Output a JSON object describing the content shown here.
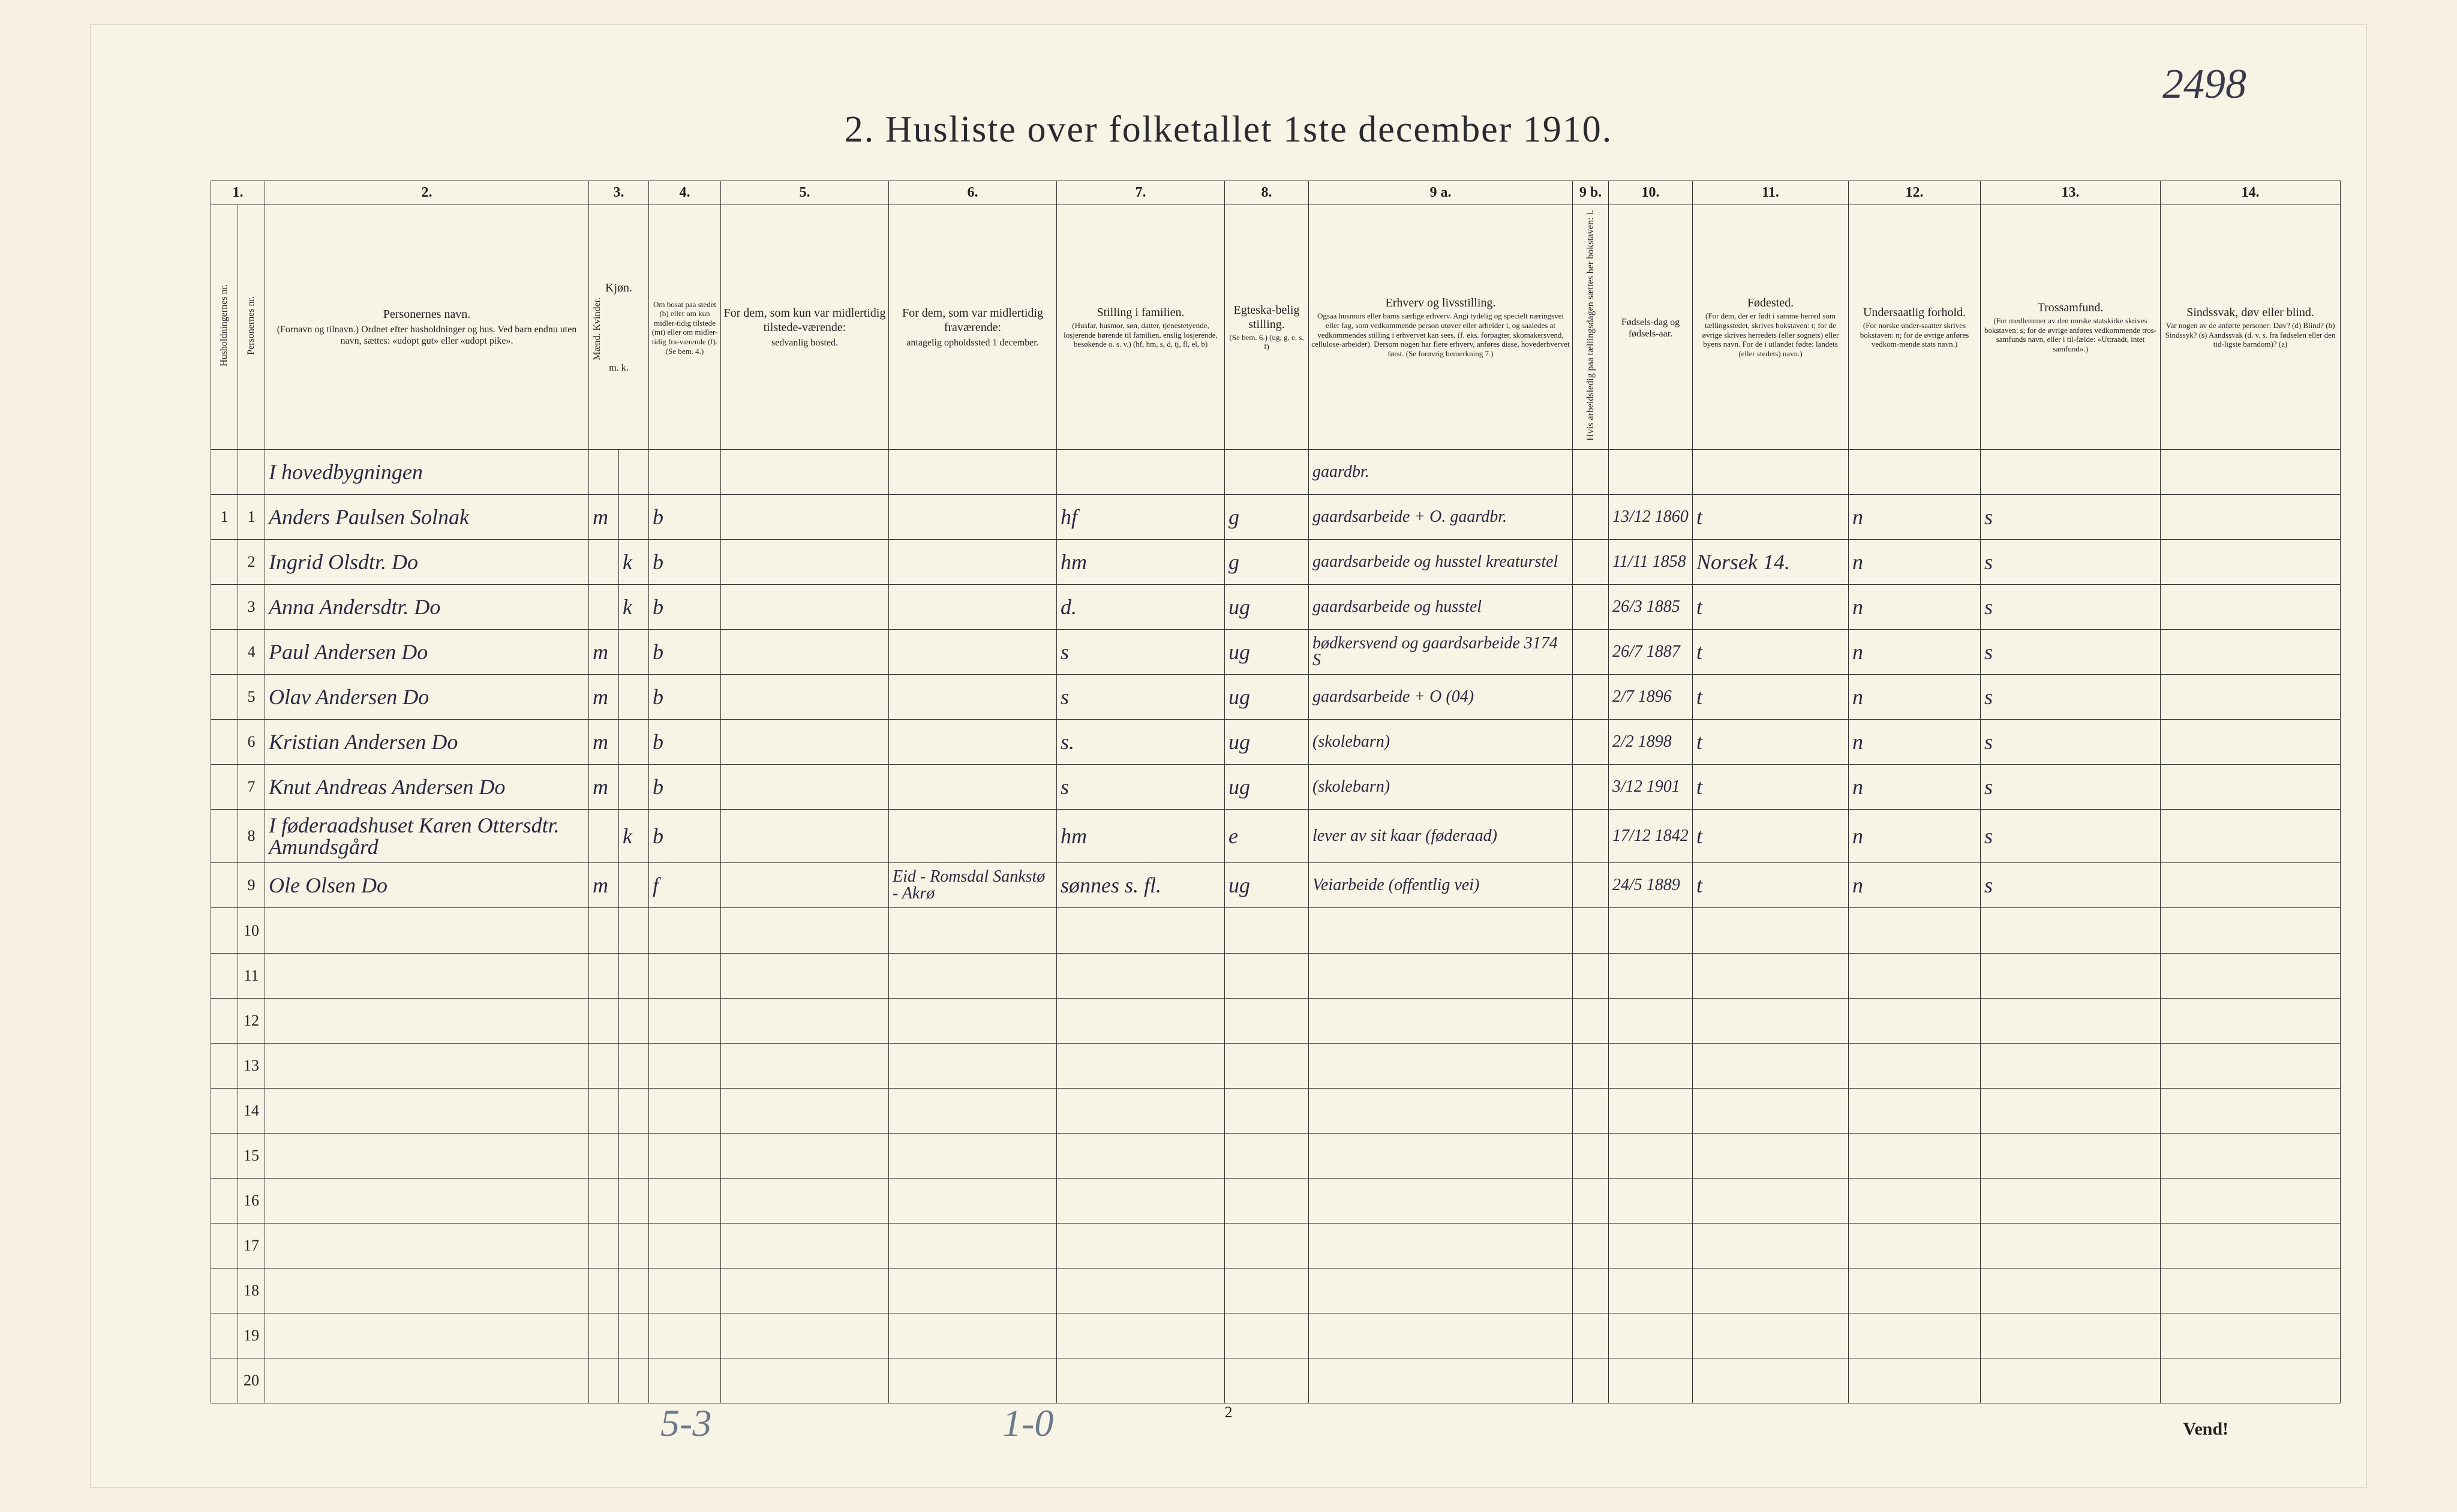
{
  "handwritten_topright": "2498",
  "title": "2.  Husliste over folketallet 1ste december 1910.",
  "footer_left": "5-3",
  "footer_mid": "1-0",
  "footer_pagenum": "2",
  "footer_vend": "Vend!",
  "colors": {
    "page_bg": "#f5f0e0",
    "ink": "#2a2a30",
    "pencil": "#6a7a88",
    "rule": "#333333"
  },
  "columns": {
    "nums": [
      "1.",
      "2.",
      "3.",
      "4.",
      "5.",
      "6.",
      "7.",
      "8.",
      "9 a.",
      "9 b.",
      "10.",
      "11.",
      "12.",
      "13.",
      "14."
    ],
    "h1": "Husholdningernes nr.",
    "h1b": "Personernes nr.",
    "h2": "Personernes navn.",
    "h2_sub": "(Fornavn og tilnavn.)\nOrdnet efter husholdninger og hus.\nVed barn endnu uten navn, sættes: «udopt gut» eller «udopt pike».",
    "h3": "Kjøn.",
    "h3_sub": "Mænd.  Kvinder.",
    "h3_foot": "m.  k.",
    "h4": "Om bosat paa stedet (b) eller om kun midler-tidig tilstede (mt) eller om midler-tidig fra-værende (f). (Se bem. 4.)",
    "h5": "For dem, som kun var midlertidig tilstede-værende:",
    "h5_sub": "sedvanlig bosted.",
    "h6": "For dem, som var midlertidig fraværende:",
    "h6_sub": "antagelig opholdssted 1 december.",
    "h7": "Stilling i familien.",
    "h7_sub": "(Husfar, husmor, søn, datter, tjenestetyende, losjerende hørende til familien, enslig losjerende, besøkende o. s. v.)\n(hf, hm, s, d, tj, fl, el, b)",
    "h8": "Egteska-belig stilling.",
    "h8_sub": "(Se bem. 6.)\n(ug, g, e, s, f)",
    "h9a": "Erhverv og livsstilling.",
    "h9a_sub": "Ogsaa husmors eller barns særlige erhverv. Angi tydelig og specielt næringsvei eller fag, som vedkommende person utøver eller arbeider i, og saaledes at vedkommendes stilling i erhvervet kan sees, (f. eks. forpagter, skomakersvend, cellulose-arbeider). Dersom nogen har flere erhverv, anføres disse, hovederhvervet først. (Se forøvrig bemerkning 7.)",
    "h9b": "Hvis arbeidsledig paa tællingsdagen sættes her bokstaven: l.",
    "h10": "Fødsels-dag og fødsels-aar.",
    "h11": "Fødested.",
    "h11_sub": "(For dem, der er født i samme herred som tællingsstedet, skrives bokstaven: t; for de øvrige skrives herredets (eller sognets) eller byens navn. For de i utlandet fødte: landets (eller stedets) navn.)",
    "h12": "Undersaatlig forhold.",
    "h12_sub": "(For norske under-saatter skrives bokstaven: n; for de øvrige anføres vedkom-mende stats navn.)",
    "h13": "Trossamfund.",
    "h13_sub": "(For medlemmer av den norske statskirke skrives bokstaven: s; for de øvrige anføres vedkommende tros-samfunds navn, eller i til-fælde: «Uttraadt, intet samfund».)",
    "h14": "Sindssvak, døv eller blind.",
    "h14_sub": "Var nogen av de anførte personer:\nDøv? (d)\nBlind? (b)\nSindssyk? (s)\nAandssvak (d. v. s. fra fødselen eller den tid-ligste barndom)? (a)"
  },
  "section_header": "I hovedbygningen",
  "rows": [
    {
      "hh": "1",
      "pn": "1",
      "name": "Anders Paulsen Solnak",
      "sex": "m",
      "res": "b",
      "c5": "",
      "c6": "",
      "fam": "hf",
      "mar": "g",
      "occ": "gaardsarbeide  + O.  gaardbr.",
      "dob": "13/12 1860",
      "birthpl": "t",
      "nat": "n",
      "rel": "s",
      "c14": ""
    },
    {
      "hh": "",
      "pn": "2",
      "name": "Ingrid Olsdtr.       Do",
      "sex": "k",
      "res": "b",
      "c5": "",
      "c6": "",
      "fam": "hm",
      "mar": "g",
      "occ": "gaardsarbeide og husstel  kreaturstel",
      "dob": "11/11 1858",
      "birthpl": "Norsek 14.",
      "nat": "n",
      "rel": "s",
      "c14": ""
    },
    {
      "hh": "",
      "pn": "3",
      "name": "Anna Andersdtr.  Do",
      "sex": "k",
      "res": "b",
      "c5": "",
      "c6": "",
      "fam": "d.",
      "mar": "ug",
      "occ": "gaardsarbeide og husstel",
      "dob": "26/3 1885",
      "birthpl": "t",
      "nat": "n",
      "rel": "s",
      "c14": ""
    },
    {
      "hh": "",
      "pn": "4",
      "name": "Paul Andersen    Do",
      "sex": "m",
      "res": "b",
      "c5": "",
      "c6": "",
      "fam": "s",
      "mar": "ug",
      "occ": "bødkersvend og gaardsarbeide  3174 S",
      "dob": "26/7 1887",
      "birthpl": "t",
      "nat": "n",
      "rel": "s",
      "c14": ""
    },
    {
      "hh": "",
      "pn": "5",
      "name": "Olav Andersen    Do",
      "sex": "m",
      "res": "b",
      "c5": "",
      "c6": "",
      "fam": "s",
      "mar": "ug",
      "occ": "gaardsarbeide  + O (04)",
      "dob": "2/7 1896",
      "birthpl": "t",
      "nat": "n",
      "rel": "s",
      "c14": ""
    },
    {
      "hh": "",
      "pn": "6",
      "name": "Kristian Andersen  Do",
      "sex": "m",
      "res": "b",
      "c5": "",
      "c6": "",
      "fam": "s.",
      "mar": "ug",
      "occ": "(skolebarn)",
      "dob": "2/2 1898",
      "birthpl": "t",
      "nat": "n",
      "rel": "s",
      "c14": ""
    },
    {
      "hh": "",
      "pn": "7",
      "name": "Knut Andreas Andersen Do",
      "sex": "m",
      "res": "b",
      "c5": "",
      "c6": "",
      "fam": "s",
      "mar": "ug",
      "occ": "(skolebarn)",
      "dob": "3/12 1901",
      "birthpl": "t",
      "nat": "n",
      "rel": "s",
      "c14": ""
    },
    {
      "hh": "",
      "pn": "8",
      "name": "I føderaadshuset  Karen Ottersdtr. Amundsgård",
      "sex": "k",
      "res": "b",
      "c5": "",
      "c6": "",
      "fam": "hm",
      "mar": "e",
      "occ": "lever av sit kaar (føderaad)",
      "dob": "17/12 1842",
      "birthpl": "t",
      "nat": "n",
      "rel": "s",
      "c14": ""
    },
    {
      "hh": "",
      "pn": "9",
      "name": "Ole Olsen         Do",
      "sex": "m",
      "res": "f",
      "c5": "",
      "c6": "Eid - Romsdal  Sankstø - Akrø",
      "fam": "sønnes s. fl.",
      "mar": "ug",
      "occ": "Veiarbeide (offentlig vei)",
      "dob": "24/5 1889",
      "birthpl": "t",
      "nat": "n",
      "rel": "s",
      "c14": ""
    }
  ],
  "empty_rows": [
    10,
    11,
    12,
    13,
    14,
    15,
    16,
    17,
    18,
    19,
    20
  ]
}
